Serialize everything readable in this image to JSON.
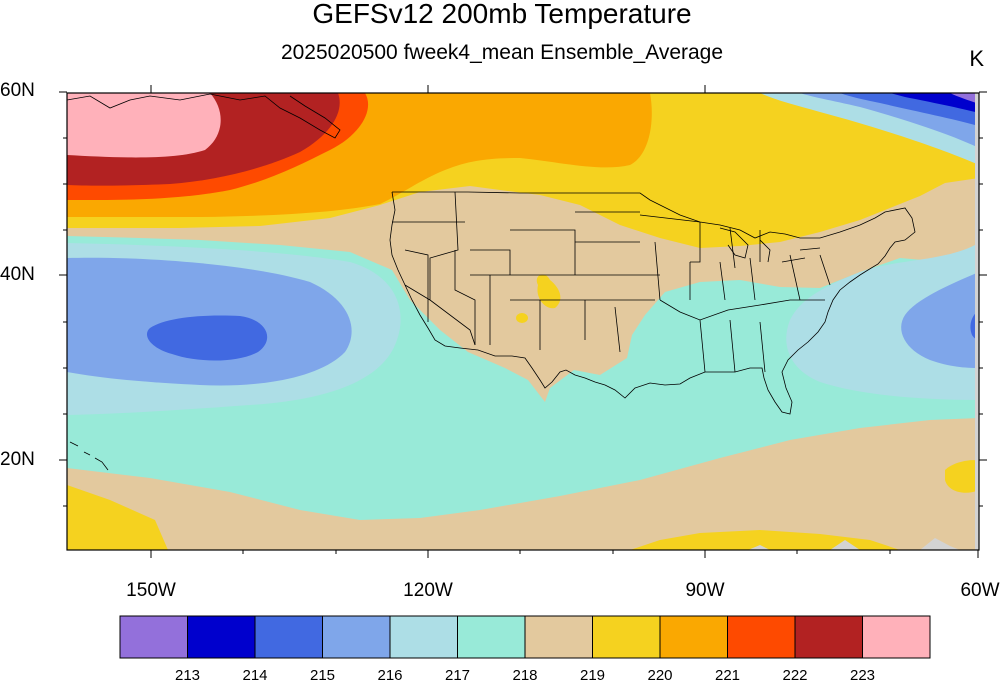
{
  "title": "GEFSv12 200mb Temperature",
  "subtitle": "2025020500 fweek4_mean Ensemble_Average",
  "units": "K",
  "lat_labels": [
    "60N",
    "40N",
    "20N"
  ],
  "lon_labels": [
    "150W",
    "120W",
    "90W",
    "60W"
  ],
  "colorbar": {
    "colors": [
      "#9370DB",
      "#0000CD",
      "#4169E1",
      "#7FA6EA",
      "#ADDEE6",
      "#98EAD8",
      "#E3C99E",
      "#F5D21F",
      "#FAA801",
      "#FE4A00",
      "#B22222",
      "#FFB1BA"
    ],
    "labels": [
      "213",
      "214",
      "215",
      "216",
      "217",
      "218",
      "219",
      "220",
      "221",
      "222",
      "223"
    ]
  }
}
